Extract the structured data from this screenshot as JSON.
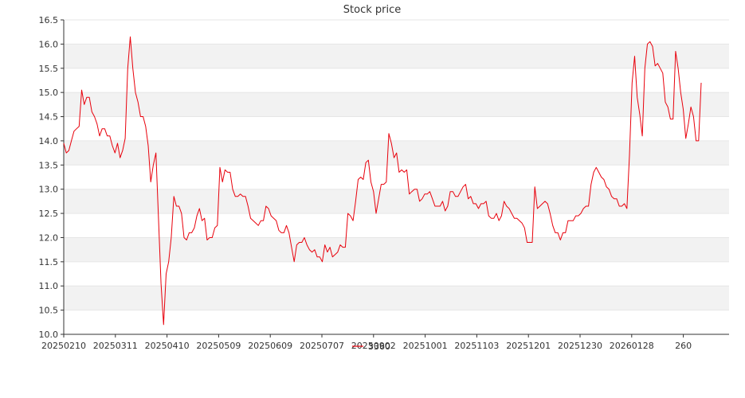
{
  "chart_data": {
    "type": "line",
    "title": "Stock price",
    "xlabel": "",
    "ylabel": "",
    "ylim": [
      10.0,
      16.5
    ],
    "yticks": [
      "10.0",
      "10.5",
      "11.0",
      "11.5",
      "12.0",
      "12.5",
      "13.0",
      "13.5",
      "14.0",
      "14.5",
      "15.0",
      "15.5",
      "16.0",
      "16.5"
    ],
    "xticks": [
      "20250210",
      "20250311",
      "20250410",
      "20250509",
      "20250609",
      "20250707",
      "20250902",
      "20251001",
      "20251103",
      "20251201",
      "20251230",
      "20260128",
      "260"
    ],
    "grid": "horizontal alternating bands",
    "legend": {
      "position": "bottom-center",
      "entries": [
        "3360"
      ]
    },
    "series": [
      {
        "name": "3360",
        "color": "#e8000b",
        "x_start_label": "20250210",
        "values": [
          13.95,
          13.75,
          13.8,
          14.0,
          14.2,
          14.25,
          14.3,
          15.05,
          14.75,
          14.9,
          14.9,
          14.6,
          14.5,
          14.35,
          14.1,
          14.25,
          14.25,
          14.1,
          14.1,
          13.9,
          13.75,
          13.95,
          13.65,
          13.8,
          14.05,
          15.5,
          16.15,
          15.5,
          15.0,
          14.8,
          14.5,
          14.5,
          14.3,
          13.9,
          13.15,
          13.5,
          13.75,
          12.4,
          11.05,
          10.2,
          11.25,
          11.5,
          12.0,
          12.85,
          12.65,
          12.65,
          12.5,
          12.0,
          11.95,
          12.1,
          12.1,
          12.2,
          12.45,
          12.6,
          12.35,
          12.4,
          11.95,
          12.0,
          12.0,
          12.2,
          12.25,
          13.45,
          13.15,
          13.4,
          13.35,
          13.35,
          13.0,
          12.85,
          12.85,
          12.9,
          12.85,
          12.85,
          12.65,
          12.4,
          12.35,
          12.3,
          12.25,
          12.35,
          12.35,
          12.65,
          12.6,
          12.45,
          12.4,
          12.35,
          12.15,
          12.1,
          12.1,
          12.25,
          12.1,
          11.8,
          11.5,
          11.85,
          11.9,
          11.9,
          12.0,
          11.85,
          11.75,
          11.7,
          11.75,
          11.6,
          11.6,
          11.5,
          11.85,
          11.7,
          11.8,
          11.6,
          11.65,
          11.7,
          11.85,
          11.8,
          11.8,
          12.5,
          12.45,
          12.35,
          12.75,
          13.2,
          13.25,
          13.2,
          13.55,
          13.6,
          13.15,
          12.95,
          12.5,
          12.8,
          13.1,
          13.1,
          13.15,
          14.15,
          13.95,
          13.65,
          13.75,
          13.35,
          13.4,
          13.35,
          13.4,
          12.9,
          12.95,
          13.0,
          13.0,
          12.75,
          12.8,
          12.9,
          12.9,
          12.95,
          12.8,
          12.65,
          12.65,
          12.65,
          12.75,
          12.55,
          12.65,
          12.95,
          12.95,
          12.85,
          12.85,
          12.95,
          13.05,
          13.1,
          12.8,
          12.85,
          12.7,
          12.7,
          12.6,
          12.7,
          12.7,
          12.75,
          12.45,
          12.4,
          12.4,
          12.5,
          12.35,
          12.45,
          12.75,
          12.65,
          12.6,
          12.5,
          12.4,
          12.4,
          12.35,
          12.3,
          12.2,
          11.9,
          11.9,
          11.9,
          13.05,
          12.6,
          12.65,
          12.7,
          12.75,
          12.7,
          12.5,
          12.25,
          12.1,
          12.1,
          11.95,
          12.1,
          12.1,
          12.35,
          12.35,
          12.35,
          12.45,
          12.45,
          12.5,
          12.6,
          12.65,
          12.65,
          13.1,
          13.35,
          13.45,
          13.35,
          13.25,
          13.2,
          13.05,
          13.0,
          12.85,
          12.8,
          12.8,
          12.65,
          12.65,
          12.7,
          12.6,
          13.7,
          15.2,
          15.75,
          14.9,
          14.55,
          14.1,
          15.5,
          16.0,
          16.05,
          15.95,
          15.55,
          15.6,
          15.5,
          15.4,
          14.8,
          14.7,
          14.45,
          14.45,
          15.85,
          15.5,
          15.0,
          14.65,
          14.05,
          14.35,
          14.7,
          14.5,
          14.0,
          14.0,
          15.2
        ]
      }
    ]
  }
}
